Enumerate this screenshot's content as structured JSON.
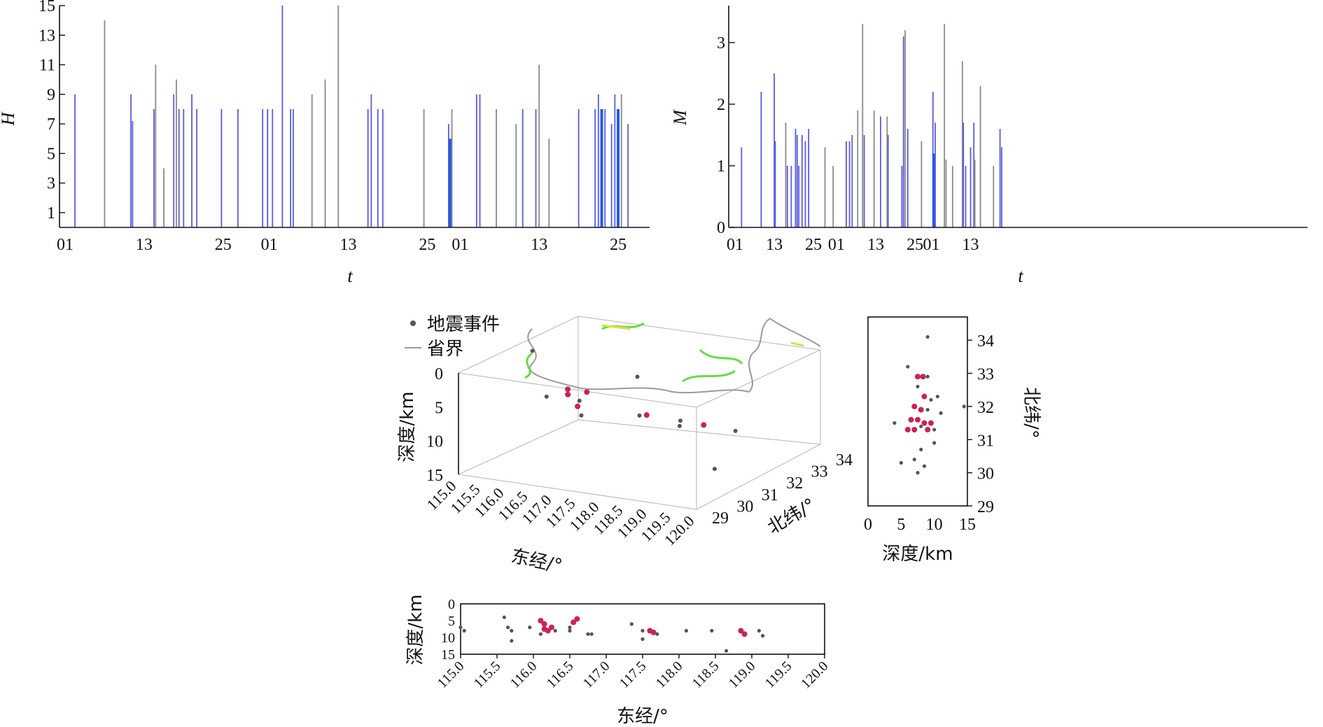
{
  "chart_data": [
    {
      "id": "H-timeline",
      "type": "bar",
      "ylabel": "H",
      "xlabel": "t",
      "ylim": [
        0,
        15
      ],
      "yticks": [
        "1",
        "3",
        "5",
        "7",
        "9",
        "11",
        "13",
        "15"
      ],
      "xticks": [
        "01",
        "13",
        "25",
        "01",
        "13",
        "25",
        "01",
        "13",
        "25"
      ],
      "x_domain": [
        0,
        175
      ],
      "x_tick_positions": [
        0,
        24,
        48,
        62,
        86,
        110,
        120,
        144,
        168
      ],
      "colors": {
        "blue": "#5a5ae0",
        "gray": "#8a8a8a",
        "bright": "#1e5be6"
      },
      "bars": [
        {
          "x": 3,
          "value": 9,
          "color": "blue"
        },
        {
          "x": 12,
          "value": 14,
          "color": "gray"
        },
        {
          "x": 20,
          "value": 9,
          "color": "blue"
        },
        {
          "x": 20.5,
          "value": 7.2,
          "color": "blue"
        },
        {
          "x": 27,
          "value": 8,
          "color": "blue"
        },
        {
          "x": 27.5,
          "value": 11,
          "color": "gray"
        },
        {
          "x": 30,
          "value": 4,
          "color": "gray"
        },
        {
          "x": 33,
          "value": 9,
          "color": "blue"
        },
        {
          "x": 33.8,
          "value": 10,
          "color": "gray"
        },
        {
          "x": 34.6,
          "value": 8,
          "color": "blue"
        },
        {
          "x": 36,
          "value": 8,
          "color": "blue"
        },
        {
          "x": 38.5,
          "value": 9,
          "color": "blue"
        },
        {
          "x": 40,
          "value": 8,
          "color": "blue"
        },
        {
          "x": 47.5,
          "value": 8,
          "color": "blue"
        },
        {
          "x": 52.5,
          "value": 8,
          "color": "blue"
        },
        {
          "x": 60,
          "value": 8,
          "color": "blue"
        },
        {
          "x": 61.5,
          "value": 8,
          "color": "blue"
        },
        {
          "x": 63,
          "value": 8,
          "color": "blue"
        },
        {
          "x": 66,
          "value": 15,
          "color": "blue"
        },
        {
          "x": 68.5,
          "value": 8,
          "color": "blue"
        },
        {
          "x": 69.3,
          "value": 8,
          "color": "blue"
        },
        {
          "x": 75,
          "value": 9,
          "color": "gray"
        },
        {
          "x": 79,
          "value": 10,
          "color": "gray"
        },
        {
          "x": 83,
          "value": 15,
          "color": "gray"
        },
        {
          "x": 92,
          "value": 8,
          "color": "blue"
        },
        {
          "x": 93,
          "value": 9,
          "color": "blue"
        },
        {
          "x": 95,
          "value": 8,
          "color": "blue"
        },
        {
          "x": 96.5,
          "value": 8,
          "color": "blue"
        },
        {
          "x": 109,
          "value": 8,
          "color": "gray"
        },
        {
          "x": 116.5,
          "value": 7,
          "color": "blue"
        },
        {
          "x": 117,
          "value": 6,
          "color": "bright"
        },
        {
          "x": 117.5,
          "value": 8,
          "color": "gray"
        },
        {
          "x": 125,
          "value": 9,
          "color": "blue"
        },
        {
          "x": 126,
          "value": 9,
          "color": "blue"
        },
        {
          "x": 131,
          "value": 8,
          "color": "gray"
        },
        {
          "x": 137,
          "value": 7,
          "color": "gray"
        },
        {
          "x": 139,
          "value": 8,
          "color": "blue"
        },
        {
          "x": 143,
          "value": 8,
          "color": "blue"
        },
        {
          "x": 144,
          "value": 11,
          "color": "gray"
        },
        {
          "x": 147,
          "value": 6,
          "color": "gray"
        },
        {
          "x": 156,
          "value": 8,
          "color": "blue"
        },
        {
          "x": 161,
          "value": 8,
          "color": "blue"
        },
        {
          "x": 162,
          "value": 9,
          "color": "blue"
        },
        {
          "x": 163,
          "value": 8,
          "color": "bright"
        },
        {
          "x": 164,
          "value": 8,
          "color": "blue"
        },
        {
          "x": 166,
          "value": 7,
          "color": "blue"
        },
        {
          "x": 167,
          "value": 9,
          "color": "blue"
        },
        {
          "x": 168,
          "value": 8,
          "color": "bright"
        },
        {
          "x": 169,
          "value": 9,
          "color": "gray"
        },
        {
          "x": 171,
          "value": 7,
          "color": "blue"
        }
      ]
    },
    {
      "id": "M-timeline",
      "type": "bar",
      "ylabel": "M",
      "xlabel": "t",
      "ylim": [
        0,
        3.6
      ],
      "yticks": [
        "0",
        "1",
        "2",
        "3"
      ],
      "xticks": [
        "01",
        "13",
        "25",
        "01",
        "13",
        "25",
        "01",
        "13"
      ],
      "x_domain": [
        0,
        175
      ],
      "x_tick_positions": [
        0,
        12,
        24,
        31,
        43,
        55,
        60,
        72
      ],
      "colors": {
        "blue": "#5a5ae0",
        "gray": "#8a8a8a",
        "bright": "#1e5be6"
      },
      "bars": [
        {
          "x": 2,
          "value": 1.3,
          "color": "blue"
        },
        {
          "x": 8,
          "value": 2.2,
          "color": "blue"
        },
        {
          "x": 12,
          "value": 2.5,
          "color": "blue"
        },
        {
          "x": 12.3,
          "value": 1.4,
          "color": "blue"
        },
        {
          "x": 15.5,
          "value": 1.7,
          "color": "gray"
        },
        {
          "x": 16,
          "value": 1.0,
          "color": "blue"
        },
        {
          "x": 17.2,
          "value": 1.0,
          "color": "blue"
        },
        {
          "x": 18.5,
          "value": 1.6,
          "color": "blue"
        },
        {
          "x": 19,
          "value": 1.5,
          "color": "blue"
        },
        {
          "x": 19.5,
          "value": 1.0,
          "color": "blue"
        },
        {
          "x": 20.5,
          "value": 1.5,
          "color": "blue"
        },
        {
          "x": 21.5,
          "value": 1.4,
          "color": "blue"
        },
        {
          "x": 22.5,
          "value": 1.6,
          "color": "blue"
        },
        {
          "x": 27.5,
          "value": 1.3,
          "color": "gray"
        },
        {
          "x": 30,
          "value": 1.0,
          "color": "gray"
        },
        {
          "x": 34,
          "value": 1.4,
          "color": "blue"
        },
        {
          "x": 35,
          "value": 1.4,
          "color": "blue"
        },
        {
          "x": 35.8,
          "value": 1.5,
          "color": "blue"
        },
        {
          "x": 37.5,
          "value": 1.9,
          "color": "gray"
        },
        {
          "x": 39,
          "value": 3.3,
          "color": "gray"
        },
        {
          "x": 39.5,
          "value": 1.5,
          "color": "blue"
        },
        {
          "x": 42.5,
          "value": 1.9,
          "color": "gray"
        },
        {
          "x": 44.5,
          "value": 1.8,
          "color": "blue"
        },
        {
          "x": 46.5,
          "value": 1.8,
          "color": "gray"
        },
        {
          "x": 46.8,
          "value": 1.5,
          "color": "blue"
        },
        {
          "x": 51,
          "value": 1.0,
          "color": "blue"
        },
        {
          "x": 51.5,
          "value": 3.1,
          "color": "blue"
        },
        {
          "x": 52,
          "value": 3.2,
          "color": "gray"
        },
        {
          "x": 52.8,
          "value": 1.6,
          "color": "blue"
        },
        {
          "x": 57,
          "value": 1.4,
          "color": "gray"
        },
        {
          "x": 60.5,
          "value": 2.2,
          "color": "blue"
        },
        {
          "x": 60.8,
          "value": 1.2,
          "color": "bright"
        },
        {
          "x": 61.2,
          "value": 1.7,
          "color": "blue"
        },
        {
          "x": 64,
          "value": 3.3,
          "color": "gray"
        },
        {
          "x": 64.5,
          "value": 1.1,
          "color": "gray"
        },
        {
          "x": 66.5,
          "value": 1.0,
          "color": "gray"
        },
        {
          "x": 69.5,
          "value": 2.7,
          "color": "gray"
        },
        {
          "x": 69.8,
          "value": 1.7,
          "color": "blue"
        },
        {
          "x": 70.5,
          "value": 1.0,
          "color": "blue"
        },
        {
          "x": 72,
          "value": 1.3,
          "color": "blue"
        },
        {
          "x": 73,
          "value": 1.7,
          "color": "blue"
        },
        {
          "x": 73.3,
          "value": 1.1,
          "color": "gray"
        },
        {
          "x": 75,
          "value": 2.3,
          "color": "gray"
        },
        {
          "x": 79,
          "value": 1.0,
          "color": "gray"
        },
        {
          "x": 81,
          "value": 1.6,
          "color": "blue"
        },
        {
          "x": 81.5,
          "value": 1.3,
          "color": "blue"
        }
      ]
    },
    {
      "id": "3d-scatter",
      "type": "scatter",
      "legend": [
        "地震事件",
        "省界"
      ],
      "depth_ticks": [
        "0",
        "5",
        "10",
        "15"
      ],
      "lon_ticks": [
        "115.0",
        "115.5",
        "116.0",
        "116.5",
        "117.0",
        "117.5",
        "118.0",
        "118.5",
        "119.0",
        "119.5",
        "120.0"
      ],
      "lat_ticks": [
        "29",
        "30",
        "31",
        "32",
        "33",
        "34"
      ],
      "depth_label": "深度/km",
      "lon_label": "东经/°",
      "lat_label": "北纬/°",
      "xlim": [
        115.0,
        120.0
      ],
      "ylim": [
        29,
        34
      ],
      "zlim": [
        0,
        15
      ],
      "colors": {
        "event_dark": "#555555",
        "event_red": "#cc2255",
        "border": "#9a9a9a",
        "border_green": "#66dd44",
        "border_yellow": "#d8e23a"
      },
      "events": [
        {
          "lon": 115.2,
          "lat": 31.6,
          "depth": 1,
          "tone": "dark"
        },
        {
          "lon": 115.6,
          "lat": 31.4,
          "depth": 7,
          "tone": "dark"
        },
        {
          "lon": 116.1,
          "lat": 31.3,
          "depth": 6,
          "tone": "red"
        },
        {
          "lon": 116.2,
          "lat": 31.5,
          "depth": 8,
          "tone": "red"
        },
        {
          "lon": 116.15,
          "lat": 31.2,
          "depth": 5,
          "tone": "red"
        },
        {
          "lon": 116.5,
          "lat": 31.0,
          "depth": 6,
          "tone": "dark"
        },
        {
          "lon": 116.55,
          "lat": 31.2,
          "depth": 5,
          "tone": "red"
        },
        {
          "lon": 116.8,
          "lat": 30.5,
          "depth": 7,
          "tone": "dark"
        },
        {
          "lon": 117.3,
          "lat": 31.8,
          "depth": 3,
          "tone": "dark"
        },
        {
          "lon": 117.5,
          "lat": 31.5,
          "depth": 8,
          "tone": "dark"
        },
        {
          "lon": 117.6,
          "lat": 31.6,
          "depth": 8,
          "tone": "red"
        },
        {
          "lon": 118.1,
          "lat": 32.0,
          "depth": 9,
          "tone": "dark"
        },
        {
          "lon": 118.5,
          "lat": 31.2,
          "depth": 8,
          "tone": "dark"
        },
        {
          "lon": 118.85,
          "lat": 31.5,
          "depth": 8,
          "tone": "red"
        },
        {
          "lon": 119.1,
          "lat": 32.3,
          "depth": 10,
          "tone": "dark"
        },
        {
          "lon": 119.6,
          "lat": 30.5,
          "depth": 12,
          "tone": "dark"
        }
      ]
    },
    {
      "id": "lat-depth",
      "type": "scatter",
      "xlabel": "深度/km",
      "ylabel": "北纬/°",
      "xticks": [
        "0",
        "5",
        "10",
        "15"
      ],
      "yticks": [
        "29",
        "30",
        "31",
        "32",
        "33",
        "34"
      ],
      "xlim": [
        0,
        15
      ],
      "ylim": [
        29,
        34.7
      ],
      "points": [
        {
          "depth": 9,
          "lat": 34.1,
          "tone": "dark"
        },
        {
          "depth": 6,
          "lat": 33.2,
          "tone": "dark"
        },
        {
          "depth": 7.5,
          "lat": 32.9,
          "tone": "red"
        },
        {
          "depth": 8.3,
          "lat": 32.9,
          "tone": "red"
        },
        {
          "depth": 9,
          "lat": 32.9,
          "tone": "dark"
        },
        {
          "depth": 7.5,
          "lat": 32.6,
          "tone": "dark"
        },
        {
          "depth": 8.5,
          "lat": 32.3,
          "tone": "red"
        },
        {
          "depth": 9.5,
          "lat": 32.2,
          "tone": "dark"
        },
        {
          "depth": 10.5,
          "lat": 32.3,
          "tone": "dark"
        },
        {
          "depth": 7,
          "lat": 32.0,
          "tone": "red"
        },
        {
          "depth": 8,
          "lat": 31.9,
          "tone": "red"
        },
        {
          "depth": 9,
          "lat": 31.9,
          "tone": "dark"
        },
        {
          "depth": 11,
          "lat": 31.8,
          "tone": "dark"
        },
        {
          "depth": 14.5,
          "lat": 32.0,
          "tone": "dark"
        },
        {
          "depth": 6.5,
          "lat": 31.6,
          "tone": "red"
        },
        {
          "depth": 7.5,
          "lat": 31.6,
          "tone": "red"
        },
        {
          "depth": 8.5,
          "lat": 31.5,
          "tone": "red"
        },
        {
          "depth": 9.5,
          "lat": 31.5,
          "tone": "red"
        },
        {
          "depth": 4,
          "lat": 31.5,
          "tone": "dark"
        },
        {
          "depth": 6,
          "lat": 31.3,
          "tone": "red"
        },
        {
          "depth": 7,
          "lat": 31.3,
          "tone": "red"
        },
        {
          "depth": 8,
          "lat": 31.4,
          "tone": "dark"
        },
        {
          "depth": 9,
          "lat": 31.3,
          "tone": "red"
        },
        {
          "depth": 10,
          "lat": 31.3,
          "tone": "dark"
        },
        {
          "depth": 10,
          "lat": 30.9,
          "tone": "dark"
        },
        {
          "depth": 8,
          "lat": 30.7,
          "tone": "dark"
        },
        {
          "depth": 5,
          "lat": 30.3,
          "tone": "dark"
        },
        {
          "depth": 7,
          "lat": 30.4,
          "tone": "dark"
        },
        {
          "depth": 8.5,
          "lat": 30.2,
          "tone": "dark"
        },
        {
          "depth": 7.5,
          "lat": 30.0,
          "tone": "dark"
        }
      ]
    },
    {
      "id": "lon-depth",
      "type": "scatter",
      "xlabel": "东经/°",
      "ylabel": "深度/km",
      "xticks": [
        "115.0",
        "115.5",
        "116.0",
        "116.5",
        "117.0",
        "117.5",
        "118.0",
        "118.5",
        "119.0",
        "119.5",
        "120.0"
      ],
      "yticks": [
        "0",
        "5",
        "10",
        "15"
      ],
      "xlim": [
        115.0,
        120.0
      ],
      "ylim": [
        0,
        15
      ],
      "points": [
        {
          "lon": 115.0,
          "depth": 7,
          "tone": "dark"
        },
        {
          "lon": 115.05,
          "depth": 8,
          "tone": "dark"
        },
        {
          "lon": 115.6,
          "depth": 4,
          "tone": "dark"
        },
        {
          "lon": 115.65,
          "depth": 7,
          "tone": "dark"
        },
        {
          "lon": 115.7,
          "depth": 8,
          "tone": "dark"
        },
        {
          "lon": 115.7,
          "depth": 11,
          "tone": "dark"
        },
        {
          "lon": 115.95,
          "depth": 7,
          "tone": "dark"
        },
        {
          "lon": 116.1,
          "depth": 5,
          "tone": "red"
        },
        {
          "lon": 116.15,
          "depth": 6,
          "tone": "red"
        },
        {
          "lon": 116.15,
          "depth": 7.5,
          "tone": "red"
        },
        {
          "lon": 116.2,
          "depth": 8,
          "tone": "red"
        },
        {
          "lon": 116.1,
          "depth": 9,
          "tone": "dark"
        },
        {
          "lon": 116.25,
          "depth": 7,
          "tone": "red"
        },
        {
          "lon": 116.3,
          "depth": 8,
          "tone": "dark"
        },
        {
          "lon": 116.5,
          "depth": 7,
          "tone": "dark"
        },
        {
          "lon": 116.55,
          "depth": 5.5,
          "tone": "red"
        },
        {
          "lon": 116.6,
          "depth": 4.5,
          "tone": "red"
        },
        {
          "lon": 116.5,
          "depth": 8,
          "tone": "dark"
        },
        {
          "lon": 116.75,
          "depth": 9,
          "tone": "dark"
        },
        {
          "lon": 116.8,
          "depth": 9,
          "tone": "dark"
        },
        {
          "lon": 117.35,
          "depth": 6,
          "tone": "dark"
        },
        {
          "lon": 117.5,
          "depth": 8,
          "tone": "dark"
        },
        {
          "lon": 117.6,
          "depth": 8,
          "tone": "red"
        },
        {
          "lon": 117.65,
          "depth": 8.5,
          "tone": "red"
        },
        {
          "lon": 117.7,
          "depth": 9,
          "tone": "dark"
        },
        {
          "lon": 117.5,
          "depth": 10.5,
          "tone": "dark"
        },
        {
          "lon": 118.1,
          "depth": 8,
          "tone": "dark"
        },
        {
          "lon": 118.45,
          "depth": 8,
          "tone": "dark"
        },
        {
          "lon": 118.65,
          "depth": 14,
          "tone": "dark"
        },
        {
          "lon": 118.85,
          "depth": 8,
          "tone": "red"
        },
        {
          "lon": 118.9,
          "depth": 9,
          "tone": "red"
        },
        {
          "lon": 119.1,
          "depth": 8,
          "tone": "dark"
        },
        {
          "lon": 119.15,
          "depth": 9.5,
          "tone": "dark"
        }
      ]
    }
  ]
}
